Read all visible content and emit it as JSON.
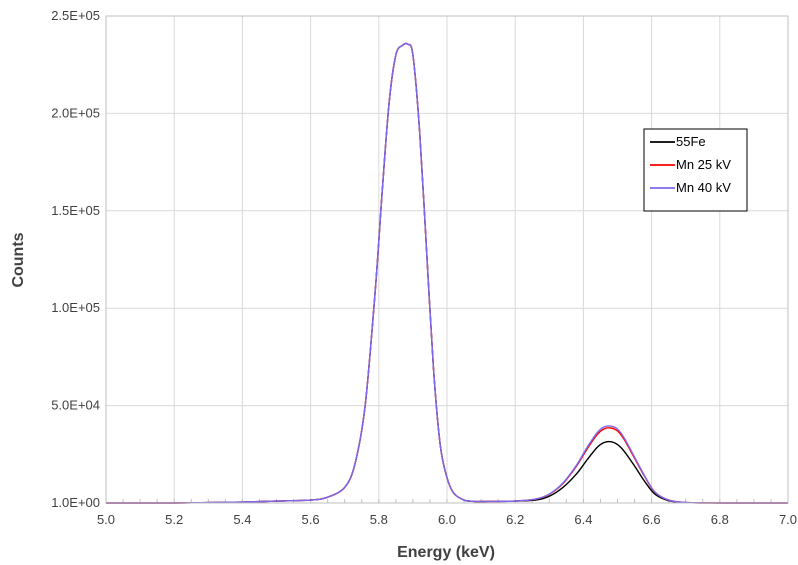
{
  "chart_data": {
    "type": "line",
    "title": "",
    "xlabel": "Energy (keV)",
    "ylabel": "Counts",
    "xlim": [
      5.0,
      7.0
    ],
    "ylim": [
      1.0,
      250000
    ],
    "x_ticks": [
      "5.0",
      "5.2",
      "5.4",
      "5.6",
      "5.8",
      "6.0",
      "6.2",
      "6.4",
      "6.6",
      "6.8",
      "7.0"
    ],
    "y_ticks": [
      "1.0E+00",
      "5.0E+04",
      "1.0E+05",
      "1.5E+05",
      "2.0E+05",
      "2.5E+05"
    ],
    "grid": true,
    "legend_position": "right",
    "x": [
      5.0,
      5.2,
      5.4,
      5.5,
      5.6,
      5.65,
      5.7,
      5.73,
      5.76,
      5.79,
      5.81,
      5.83,
      5.85,
      5.87,
      5.885,
      5.9,
      5.92,
      5.94,
      5.96,
      5.98,
      6.0,
      6.02,
      6.05,
      6.08,
      6.12,
      6.2,
      6.26,
      6.3,
      6.34,
      6.38,
      6.41,
      6.44,
      6.46,
      6.48,
      6.5,
      6.52,
      6.55,
      6.58,
      6.61,
      6.65,
      6.7,
      6.8,
      7.0
    ],
    "series": [
      {
        "name": "55Fe",
        "color": "#000000",
        "values": [
          0,
          0,
          500,
          1000,
          1500,
          3000,
          8000,
          20000,
          50000,
          110000,
          160000,
          205000,
          230000,
          235000,
          235500,
          230000,
          190000,
          130000,
          70000,
          30000,
          13000,
          5000,
          1500,
          800,
          800,
          1000,
          1500,
          3500,
          8000,
          15000,
          22000,
          28500,
          31000,
          31500,
          30000,
          26500,
          19000,
          11000,
          4500,
          1200,
          200,
          0,
          0
        ]
      },
      {
        "name": "Mn 25 kV",
        "color": "#ff0000",
        "values": [
          0,
          0,
          500,
          1000,
          1500,
          3000,
          8000,
          20000,
          50000,
          110000,
          160000,
          205000,
          230000,
          235000,
          235500,
          230000,
          190000,
          130000,
          70000,
          30000,
          13000,
          5000,
          1500,
          800,
          800,
          1000,
          2000,
          4500,
          10000,
          19000,
          27500,
          35000,
          38000,
          38500,
          37000,
          32500,
          23000,
          13500,
          5500,
          1500,
          250,
          0,
          0
        ]
      },
      {
        "name": "Mn 40 kV",
        "color": "#7b68ee",
        "values": [
          0,
          0,
          500,
          1000,
          1500,
          3000,
          8000,
          20000,
          50000,
          110000,
          160000,
          205000,
          230000,
          235000,
          235500,
          230000,
          190000,
          130000,
          70000,
          30000,
          13000,
          5000,
          1500,
          800,
          800,
          1000,
          2000,
          4600,
          10300,
          19500,
          28300,
          36000,
          39000,
          39500,
          38000,
          33300,
          23600,
          13800,
          5600,
          1500,
          250,
          0,
          0
        ]
      }
    ]
  }
}
